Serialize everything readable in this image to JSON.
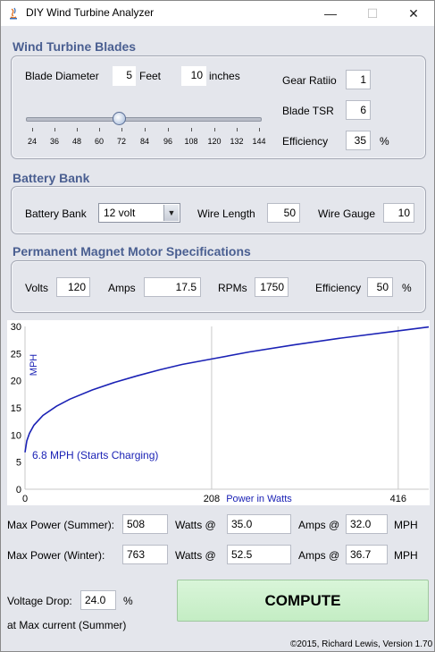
{
  "window": {
    "title": "DIY Wind Turbine Analyzer",
    "minimize_glyph": "—",
    "maximize_glyph": "☐",
    "close_glyph": "✕"
  },
  "blades": {
    "section_title": "Wind Turbine Blades",
    "diameter_label": "Blade Diameter",
    "diameter_feet": "5",
    "feet_label": "Feet",
    "diameter_inches": "10",
    "inches_label": "inches",
    "gear_ratio_label": "Gear Ratiio",
    "gear_ratio": "1",
    "tsr_label": "Blade TSR",
    "tsr": "6",
    "efficiency_label": "Efficiency",
    "efficiency": "35",
    "percent": "%",
    "slider_ticks": [
      "24",
      "36",
      "48",
      "60",
      "72",
      "84",
      "96",
      "108",
      "120",
      "132",
      "144"
    ],
    "slider_value": 70
  },
  "battery": {
    "section_title": "Battery Bank",
    "bank_label": "Battery Bank",
    "bank_value": "12 volt",
    "wire_length_label": "Wire Length",
    "wire_length": "50",
    "wire_gauge_label": "Wire Gauge",
    "wire_gauge": "10"
  },
  "motor": {
    "section_title": "Permanent Magnet Motor Specifications",
    "volts_label": "Volts",
    "volts": "120",
    "amps_label": "Amps",
    "amps": "17.5",
    "rpms_label": "RPMs",
    "rpms": "1750",
    "efficiency_label": "Efficiency",
    "efficiency": "50",
    "percent": "%"
  },
  "chart_data": {
    "type": "line",
    "xlabel": "Power in Watts",
    "ylabel": "MPH",
    "x_ticks": [
      "0",
      "208",
      "416"
    ],
    "y_ticks": [
      "0",
      "5",
      "10",
      "15",
      "20",
      "25",
      "30"
    ],
    "xlim": [
      0,
      450
    ],
    "ylim": [
      0,
      30
    ],
    "annotation": "6.8 MPH (Starts Charging)",
    "line_color": "#1b22b5",
    "series": [
      {
        "x": [
          0,
          2,
          5,
          10,
          20,
          35,
          50,
          75,
          100,
          125,
          150,
          175,
          208,
          250,
          300,
          350,
          416,
          450
        ],
        "y": [
          6.8,
          8.9,
          10.3,
          11.8,
          13.6,
          15.3,
          16.6,
          18.3,
          19.7,
          20.9,
          22.0,
          23.0,
          24.0,
          25.3,
          26.6,
          27.8,
          29.2,
          29.9
        ]
      }
    ]
  },
  "results": {
    "summer_label": "Max Power (Summer):",
    "summer_watts": "508",
    "watts_at": "Watts @",
    "summer_amps": "35.0",
    "amps_at": "Amps @",
    "summer_mph": "32.0",
    "mph": "MPH",
    "winter_label": "Max Power (Winter):",
    "winter_watts": "763",
    "winter_amps": "52.5",
    "winter_mph": "36.7",
    "voltage_drop_label": "Voltage Drop:",
    "voltage_drop": "24.0",
    "percent": "%",
    "at_max_current": "at Max current (Summer)",
    "compute_label": "COMPUTE",
    "copyright": "©2015, Richard Lewis, Version 1.70"
  }
}
